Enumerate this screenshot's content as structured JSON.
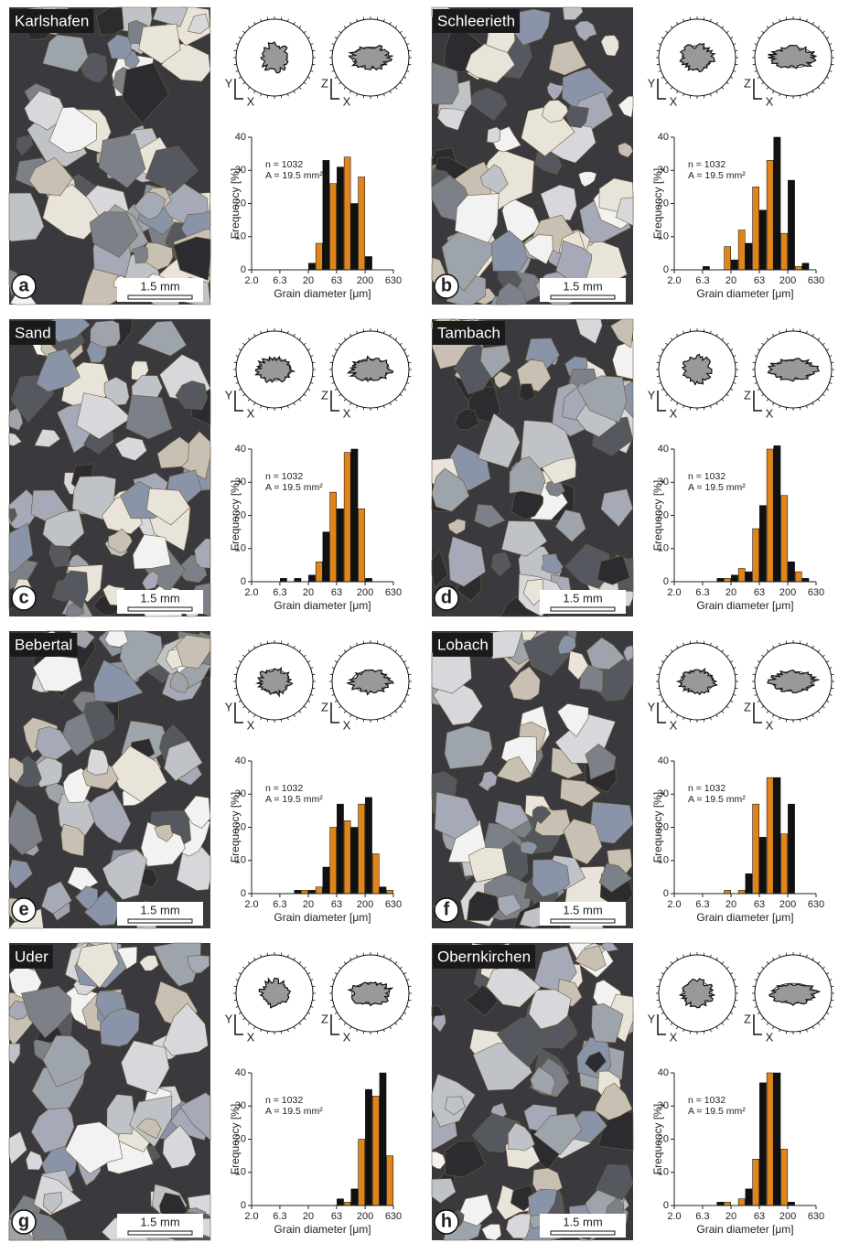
{
  "chart_data": [
    {
      "type": "histogram",
      "title": "Karlshafen",
      "panel_label": "a",
      "scale_bar_label": "1.5 mm",
      "rose_axis_labels": [
        "Y",
        "X",
        "Z",
        "X"
      ],
      "annotations": [
        "n = 1032",
        "A = 19.5 mm²"
      ],
      "ylabel": "Frequency [%]",
      "xlabel": "Grain diameter [μm]",
      "xscale": "log",
      "colors": [
        "#111111",
        "#e0851c"
      ],
      "bins": [
        2.0,
        2.67,
        3.56,
        4.74,
        6.32,
        8.43,
        11.2,
        15.0,
        20.0,
        26.7,
        35.6,
        47.4,
        63.2,
        84.3,
        112,
        150,
        200,
        267,
        356,
        474,
        632
      ],
      "values": [
        0,
        0,
        0,
        0,
        0,
        0,
        0,
        0,
        2,
        8,
        33,
        26,
        31,
        34,
        20,
        28,
        4,
        0,
        0,
        0
      ],
      "xlim": [
        2,
        630
      ],
      "xticks": [
        {
          "value": 2,
          "label": "2.0"
        },
        6.3,
        20,
        63,
        200,
        630
      ],
      "ylim": [
        0,
        40
      ],
      "yticks": [
        0,
        10,
        20,
        30,
        40
      ]
    },
    {
      "type": "histogram",
      "title": "Schleerieth",
      "panel_label": "b",
      "scale_bar_label": "1.5 mm",
      "rose_axis_labels": [
        "Y",
        "X",
        "Z",
        "X"
      ],
      "annotations": [
        "n = 1032",
        "A = 19.5 mm²"
      ],
      "ylabel": "Frequency [%]",
      "xlabel": "Grain diameter [μm]",
      "xscale": "log",
      "colors": [
        "#111111",
        "#e0851c"
      ],
      "bins": [
        2.0,
        2.67,
        3.56,
        4.74,
        6.32,
        8.43,
        11.2,
        15.0,
        20.0,
        26.7,
        35.6,
        47.4,
        63.2,
        84.3,
        112,
        150,
        200,
        267,
        356,
        474,
        632
      ],
      "values": [
        0,
        0,
        0,
        0,
        1,
        0,
        0,
        7,
        3,
        12,
        8,
        25,
        18,
        33,
        40,
        11,
        27,
        1,
        2,
        0
      ],
      "xlim": [
        2,
        630
      ],
      "xticks": [
        {
          "value": 2,
          "label": "2.0"
        },
        6.3,
        20,
        63,
        200,
        630
      ],
      "ylim": [
        0,
        40
      ],
      "yticks": [
        0,
        10,
        20,
        30,
        40
      ]
    },
    {
      "type": "histogram",
      "title": "Sand",
      "panel_label": "c",
      "scale_bar_label": "1.5 mm",
      "rose_axis_labels": [
        "Y",
        "X",
        "Z",
        "X"
      ],
      "annotations": [
        "n = 1032",
        "A = 19.5 mm²"
      ],
      "ylabel": "Frequency [%]",
      "xlabel": "Grain diameter [μm]",
      "xscale": "log",
      "colors": [
        "#111111",
        "#e0851c"
      ],
      "bins": [
        2.0,
        2.67,
        3.56,
        4.74,
        6.32,
        8.43,
        11.2,
        15.0,
        20.0,
        26.7,
        35.6,
        47.4,
        63.2,
        84.3,
        112,
        150,
        200,
        267,
        356,
        474,
        632
      ],
      "values": [
        0,
        0,
        0,
        0,
        1,
        0,
        1,
        0,
        2,
        6,
        15,
        27,
        22,
        39,
        40,
        22,
        1,
        0,
        0,
        0
      ],
      "xlim": [
        2,
        630
      ],
      "xticks": [
        {
          "value": 2,
          "label": "2.0"
        },
        6.3,
        20,
        63,
        200,
        630
      ],
      "ylim": [
        0,
        40
      ],
      "yticks": [
        0,
        10,
        20,
        30,
        40
      ]
    },
    {
      "type": "histogram",
      "title": "Tambach",
      "panel_label": "d",
      "scale_bar_label": "1.5 mm",
      "rose_axis_labels": [
        "Y",
        "X",
        "Z",
        "X"
      ],
      "annotations": [
        "n = 1032",
        "A = 19.5 mm²"
      ],
      "ylabel": "Frequency [%]",
      "xlabel": "Grain diameter [μm]",
      "xscale": "log",
      "colors": [
        "#111111",
        "#e0851c"
      ],
      "bins": [
        2.0,
        2.67,
        3.56,
        4.74,
        6.32,
        8.43,
        11.2,
        15.0,
        20.0,
        26.7,
        35.6,
        47.4,
        63.2,
        84.3,
        112,
        150,
        200,
        267,
        356,
        474,
        632
      ],
      "values": [
        0,
        0,
        0,
        0,
        0,
        0,
        1,
        1,
        2,
        4,
        3,
        16,
        23,
        40,
        41,
        26,
        6,
        3,
        1,
        0
      ],
      "xlim": [
        2,
        630
      ],
      "xticks": [
        {
          "value": 2,
          "label": "2.0"
        },
        6.3,
        20,
        63,
        200,
        630
      ],
      "ylim": [
        0,
        40
      ],
      "yticks": [
        0,
        10,
        20,
        30,
        40
      ]
    },
    {
      "type": "histogram",
      "title": "Bebertal",
      "panel_label": "e",
      "scale_bar_label": "1.5 mm",
      "rose_axis_labels": [
        "Y",
        "X",
        "Z",
        "X"
      ],
      "annotations": [
        "n = 1032",
        "A = 19.5 mm²"
      ],
      "ylabel": "Frequency [%]",
      "xlabel": "Grain diameter [μm]",
      "xscale": "log",
      "colors": [
        "#111111",
        "#e0851c"
      ],
      "bins": [
        2.0,
        2.67,
        3.56,
        4.74,
        6.32,
        8.43,
        11.2,
        15.0,
        20.0,
        26.7,
        35.6,
        47.4,
        63.2,
        84.3,
        112,
        150,
        200,
        267,
        356,
        474,
        632
      ],
      "values": [
        0,
        0,
        0,
        0,
        0,
        0,
        1,
        1,
        1,
        2,
        8,
        20,
        27,
        22,
        20,
        27,
        29,
        12,
        2,
        1
      ],
      "xlim": [
        2,
        630
      ],
      "xticks": [
        {
          "value": 2,
          "label": "2.0"
        },
        6.3,
        20,
        63,
        200,
        630
      ],
      "ylim": [
        0,
        40
      ],
      "yticks": [
        0,
        10,
        20,
        30,
        40
      ]
    },
    {
      "type": "histogram",
      "title": "Lobach",
      "panel_label": "f",
      "scale_bar_label": "1.5 mm",
      "rose_axis_labels": [
        "Y",
        "X",
        "Z",
        "X"
      ],
      "annotations": [
        "n = 1032",
        "A = 19.5 mm²"
      ],
      "ylabel": "Frequency [%]",
      "xlabel": "Grain diameter [μm]",
      "xscale": "log",
      "colors": [
        "#111111",
        "#e0851c"
      ],
      "bins": [
        2.0,
        2.67,
        3.56,
        4.74,
        6.32,
        8.43,
        11.2,
        15.0,
        20.0,
        26.7,
        35.6,
        47.4,
        63.2,
        84.3,
        112,
        150,
        200,
        267,
        356,
        474,
        632
      ],
      "values": [
        0,
        0,
        0,
        0,
        0,
        0,
        0,
        1,
        0,
        1,
        6,
        27,
        17,
        35,
        35,
        18,
        27,
        0,
        0,
        0
      ],
      "xlim": [
        2,
        630
      ],
      "xticks": [
        {
          "value": 2,
          "label": "2.0"
        },
        6.3,
        20,
        63,
        200,
        630
      ],
      "ylim": [
        0,
        40
      ],
      "yticks": [
        0,
        10,
        20,
        30,
        40
      ]
    },
    {
      "type": "histogram",
      "title": "Uder",
      "panel_label": "g",
      "scale_bar_label": "1.5 mm",
      "rose_axis_labels": [
        "Y",
        "X",
        "Z",
        "X"
      ],
      "annotations": [
        "n = 1032",
        "A = 19.5 mm²"
      ],
      "ylabel": "Frequency [%]",
      "xlabel": "Grain diameter [μm]",
      "xscale": "log",
      "colors": [
        "#111111",
        "#e0851c"
      ],
      "bins": [
        2.0,
        2.67,
        3.56,
        4.74,
        6.32,
        8.43,
        11.2,
        15.0,
        20.0,
        26.7,
        35.6,
        47.4,
        63.2,
        84.3,
        112,
        150,
        200,
        267,
        356,
        474,
        632
      ],
      "values": [
        0,
        0,
        0,
        0,
        0,
        0,
        0,
        0,
        0,
        0,
        0,
        0,
        2,
        1,
        5,
        20,
        35,
        33,
        40,
        15
      ],
      "xlim": [
        2,
        630
      ],
      "xticks": [
        {
          "value": 2,
          "label": "2.0"
        },
        6.3,
        20,
        63,
        200,
        630
      ],
      "ylim": [
        0,
        40
      ],
      "yticks": [
        0,
        10,
        20,
        30,
        40
      ]
    },
    {
      "type": "histogram",
      "title": "Obernkirchen",
      "panel_label": "h",
      "scale_bar_label": "1.5 mm",
      "rose_axis_labels": [
        "Y",
        "X",
        "Z",
        "X"
      ],
      "annotations": [
        "n = 1032",
        "A = 19.5 mm²"
      ],
      "ylabel": "Frequency [%]",
      "xlabel": "Grain diameter [μm]",
      "xscale": "log",
      "colors": [
        "#111111",
        "#e0851c"
      ],
      "bins": [
        2.0,
        2.67,
        3.56,
        4.74,
        6.32,
        8.43,
        11.2,
        15.0,
        20.0,
        26.7,
        35.6,
        47.4,
        63.2,
        84.3,
        112,
        150,
        200,
        267,
        356,
        474,
        632
      ],
      "values": [
        0,
        0,
        0,
        0,
        0,
        0,
        1,
        1,
        0,
        2,
        5,
        14,
        37,
        40,
        40,
        17,
        1,
        0,
        0,
        0
      ],
      "xlim": [
        2,
        630
      ],
      "xticks": [
        {
          "value": 2,
          "label": "2.0"
        },
        6.3,
        20,
        63,
        200,
        630
      ],
      "ylim": [
        0,
        40
      ],
      "yticks": [
        0,
        10,
        20,
        30,
        40
      ]
    }
  ]
}
